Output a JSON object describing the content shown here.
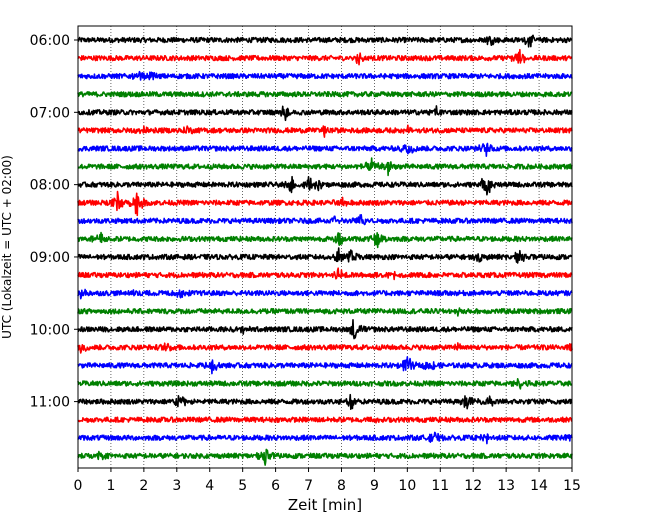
{
  "chart_data": {
    "type": "line",
    "title": "",
    "xlabel": "Zeit  [min]",
    "ylabel": "UTC (Lokalzeit = UTC + 02:00)",
    "xlim": [
      0,
      15
    ],
    "x_ticks": [
      0,
      1,
      2,
      3,
      4,
      5,
      6,
      7,
      8,
      9,
      10,
      11,
      12,
      13,
      14,
      15
    ],
    "y_tick_labels": [
      "06:00",
      "07:00",
      "08:00",
      "09:00",
      "10:00",
      "11:00"
    ],
    "grid": "vertical dotted lines at each minute",
    "trace_start_hour": 6,
    "trace_interval_minutes": 15,
    "trace_count": 24,
    "trace_colors": [
      "#000000",
      "#ff0000",
      "#0000ff",
      "#008000"
    ],
    "events": [
      {
        "trace": 0,
        "t": 12.5,
        "amp": 0.6
      },
      {
        "trace": 0,
        "t": 13.7,
        "amp": 0.8
      },
      {
        "trace": 1,
        "t": 8.5,
        "amp": 0.7
      },
      {
        "trace": 1,
        "t": 13.4,
        "amp": 1.0
      },
      {
        "trace": 2,
        "t": 1.9,
        "amp": 0.6
      },
      {
        "trace": 2,
        "t": 2.2,
        "amp": 0.5
      },
      {
        "trace": 4,
        "t": 6.3,
        "amp": 0.9
      },
      {
        "trace": 4,
        "t": 10.9,
        "amp": 0.6
      },
      {
        "trace": 5,
        "t": 2.0,
        "amp": 0.8
      },
      {
        "trace": 5,
        "t": 3.3,
        "amp": 0.6
      },
      {
        "trace": 5,
        "t": 7.5,
        "amp": 0.6
      },
      {
        "trace": 5,
        "t": 10.0,
        "amp": 0.5
      },
      {
        "trace": 6,
        "t": 10.0,
        "amp": 1.0
      },
      {
        "trace": 6,
        "t": 12.4,
        "amp": 1.0
      },
      {
        "trace": 7,
        "t": 8.9,
        "amp": 0.9
      },
      {
        "trace": 7,
        "t": 9.4,
        "amp": 1.2
      },
      {
        "trace": 8,
        "t": 6.5,
        "amp": 0.8
      },
      {
        "trace": 8,
        "t": 7.0,
        "amp": 0.9
      },
      {
        "trace": 8,
        "t": 7.3,
        "amp": 0.6
      },
      {
        "trace": 8,
        "t": 12.4,
        "amp": 1.6
      },
      {
        "trace": 9,
        "t": 1.2,
        "amp": 1.3
      },
      {
        "trace": 9,
        "t": 1.8,
        "amp": 1.6
      },
      {
        "trace": 9,
        "t": 8.0,
        "amp": 0.6
      },
      {
        "trace": 10,
        "t": 7.8,
        "amp": 0.6
      },
      {
        "trace": 10,
        "t": 8.6,
        "amp": 0.7
      },
      {
        "trace": 11,
        "t": 0.7,
        "amp": 0.9
      },
      {
        "trace": 11,
        "t": 7.9,
        "amp": 1.2
      },
      {
        "trace": 11,
        "t": 9.1,
        "amp": 1.2
      },
      {
        "trace": 12,
        "t": 7.9,
        "amp": 1.0
      },
      {
        "trace": 12,
        "t": 8.3,
        "amp": 1.0
      },
      {
        "trace": 12,
        "t": 12.2,
        "amp": 0.5
      },
      {
        "trace": 12,
        "t": 13.4,
        "amp": 0.7
      },
      {
        "trace": 13,
        "t": 7.9,
        "amp": 1.1
      },
      {
        "trace": 13,
        "t": 9.6,
        "amp": 0.6
      },
      {
        "trace": 14,
        "t": 0.1,
        "amp": 0.9
      },
      {
        "trace": 14,
        "t": 1.7,
        "amp": 0.6
      },
      {
        "trace": 14,
        "t": 3.1,
        "amp": 0.5
      },
      {
        "trace": 15,
        "t": 11.5,
        "amp": 0.4
      },
      {
        "trace": 16,
        "t": 8.4,
        "amp": 1.5
      },
      {
        "trace": 16,
        "t": 5.0,
        "amp": 0.4
      },
      {
        "trace": 17,
        "t": 0.1,
        "amp": 0.7
      },
      {
        "trace": 17,
        "t": 2.7,
        "amp": 0.5
      },
      {
        "trace": 17,
        "t": 11.6,
        "amp": 0.6
      },
      {
        "trace": 17,
        "t": 14.9,
        "amp": 0.6
      },
      {
        "trace": 18,
        "t": 4.1,
        "amp": 0.9
      },
      {
        "trace": 18,
        "t": 10.0,
        "amp": 1.1
      },
      {
        "trace": 18,
        "t": 10.7,
        "amp": 0.7
      },
      {
        "trace": 19,
        "t": 13.4,
        "amp": 0.6
      },
      {
        "trace": 20,
        "t": 3.1,
        "amp": 0.8
      },
      {
        "trace": 20,
        "t": 8.3,
        "amp": 1.0
      },
      {
        "trace": 20,
        "t": 11.8,
        "amp": 1.0
      },
      {
        "trace": 20,
        "t": 12.5,
        "amp": 0.7
      },
      {
        "trace": 21,
        "t": 9.0,
        "amp": 0.4
      },
      {
        "trace": 22,
        "t": 10.8,
        "amp": 0.8
      },
      {
        "trace": 22,
        "t": 12.4,
        "amp": 0.6
      },
      {
        "trace": 22,
        "t": 14.9,
        "amp": 0.5
      },
      {
        "trace": 23,
        "t": 5.7,
        "amp": 0.9
      },
      {
        "trace": 23,
        "t": 0.6,
        "amp": 0.6
      }
    ]
  }
}
